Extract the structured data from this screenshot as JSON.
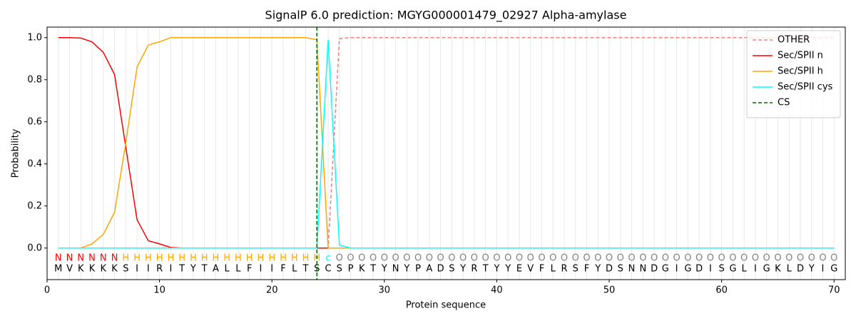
{
  "chart_data": {
    "type": "line",
    "title": "SignalP 6.0 prediction: MGYG000001479_02927 Alpha-amylase",
    "x_label": "Protein sequence",
    "y_label": "Probability",
    "x": [
      1,
      2,
      3,
      4,
      5,
      6,
      7,
      8,
      9,
      10,
      11,
      12,
      13,
      14,
      15,
      16,
      17,
      18,
      19,
      20,
      21,
      22,
      23,
      24,
      25,
      26,
      27,
      28,
      29,
      30,
      31,
      32,
      33,
      34,
      35,
      36,
      37,
      38,
      39,
      40,
      41,
      42,
      43,
      44,
      45,
      46,
      47,
      48,
      49,
      50,
      51,
      52,
      53,
      54,
      55,
      56,
      57,
      58,
      59,
      60,
      61,
      62,
      63,
      64,
      65,
      66,
      67,
      68,
      69,
      70
    ],
    "sequence": [
      "M",
      "V",
      "K",
      "K",
      "K",
      "K",
      "S",
      "I",
      "I",
      "R",
      "I",
      "T",
      "Y",
      "T",
      "A",
      "L",
      "L",
      "F",
      "I",
      "I",
      "F",
      "L",
      "T",
      "S",
      "C",
      "S",
      "P",
      "K",
      "T",
      "Y",
      "N",
      "Y",
      "P",
      "A",
      "D",
      "S",
      "Y",
      "R",
      "T",
      "Y",
      "Y",
      "E",
      "V",
      "F",
      "L",
      "R",
      "S",
      "F",
      "Y",
      "D",
      "S",
      "N",
      "N",
      "D",
      "G",
      "I",
      "G",
      "D",
      "I",
      "S",
      "G",
      "L",
      "I",
      "G",
      "K",
      "L",
      "D",
      "Y",
      "I",
      "G"
    ],
    "regions": [
      "N",
      "N",
      "N",
      "N",
      "N",
      "N",
      "H",
      "H",
      "H",
      "H",
      "H",
      "H",
      "H",
      "H",
      "H",
      "H",
      "H",
      "H",
      "H",
      "H",
      "H",
      "H",
      "H",
      "H",
      "c",
      "O",
      "O",
      "O",
      "O",
      "O",
      "O",
      "O",
      "O",
      "O",
      "O",
      "O",
      "O",
      "O",
      "O",
      "O",
      "O",
      "O",
      "O",
      "O",
      "O",
      "O",
      "O",
      "O",
      "O",
      "O",
      "O",
      "O",
      "O",
      "O",
      "O",
      "O",
      "O",
      "O",
      "O",
      "O",
      "O",
      "O",
      "O",
      "O",
      "O",
      "O",
      "O",
      "O",
      "O",
      "O"
    ],
    "region_colors": {
      "N": "#ff0000",
      "H": "#ffa500",
      "c": "#00ffff",
      "O": "#808080"
    },
    "series": [
      {
        "name": "OTHER",
        "color": "#f08080",
        "dashed": true,
        "values": [
          0,
          0,
          0,
          0,
          0,
          0,
          0,
          0,
          0,
          0,
          0,
          0,
          0,
          0,
          0,
          0,
          0,
          0,
          0,
          0,
          0,
          0,
          0,
          0,
          0,
          0.995,
          1,
          1,
          1,
          1,
          1,
          1,
          1,
          1,
          1,
          1,
          1,
          1,
          1,
          1,
          1,
          1,
          1,
          1,
          1,
          1,
          1,
          1,
          1,
          1,
          1,
          1,
          1,
          1,
          1,
          1,
          1,
          1,
          1,
          1,
          1,
          1,
          1,
          1,
          1,
          1,
          1,
          1,
          1,
          1
        ]
      },
      {
        "name": "Sec/SPII n",
        "color": "#ff0000",
        "dashed": false,
        "values": [
          1,
          1,
          0.998,
          0.98,
          0.93,
          0.825,
          0.48,
          0.135,
          0.035,
          0.02,
          0.003,
          0,
          0,
          0,
          0,
          0,
          0,
          0,
          0,
          0,
          0,
          0,
          0,
          0,
          0,
          0,
          0,
          0,
          0,
          0,
          0,
          0,
          0,
          0,
          0,
          0,
          0,
          0,
          0,
          0,
          0,
          0,
          0,
          0,
          0,
          0,
          0,
          0,
          0,
          0,
          0,
          0,
          0,
          0,
          0,
          0,
          0,
          0,
          0,
          0,
          0,
          0,
          0,
          0,
          0,
          0,
          0,
          0,
          0,
          0
        ]
      },
      {
        "name": "Sec/SPII h",
        "color": "#ffa500",
        "dashed": false,
        "values": [
          0,
          0,
          0,
          0.02,
          0.065,
          0.17,
          0.5,
          0.86,
          0.965,
          0.98,
          1,
          1,
          1,
          1,
          1,
          1,
          1,
          1,
          1,
          1,
          1,
          1,
          1,
          0.99,
          0,
          0,
          0,
          0,
          0,
          0,
          0,
          0,
          0,
          0,
          0,
          0,
          0,
          0,
          0,
          0,
          0,
          0,
          0,
          0,
          0,
          0,
          0,
          0,
          0,
          0,
          0,
          0,
          0,
          0,
          0,
          0,
          0,
          0,
          0,
          0,
          0,
          0,
          0,
          0,
          0,
          0,
          0,
          0,
          0,
          0
        ]
      },
      {
        "name": "Sec/SPII cys",
        "color": "#00ffff",
        "dashed": false,
        "values": [
          0,
          0,
          0,
          0,
          0,
          0,
          0,
          0,
          0,
          0,
          0,
          0,
          0,
          0,
          0,
          0,
          0,
          0,
          0,
          0,
          0,
          0,
          0,
          0,
          0.99,
          0.015,
          0,
          0,
          0,
          0,
          0,
          0,
          0,
          0,
          0,
          0,
          0,
          0,
          0,
          0,
          0,
          0,
          0,
          0,
          0,
          0,
          0,
          0,
          0,
          0,
          0,
          0,
          0,
          0,
          0,
          0,
          0,
          0,
          0,
          0,
          0,
          0,
          0,
          0,
          0,
          0,
          0,
          0,
          0,
          0
        ]
      }
    ],
    "markers": [
      {
        "name": "CS",
        "x": 24,
        "color": "#006400"
      }
    ],
    "xlim": [
      0,
      71
    ],
    "ylim": [
      -0.15,
      1.05
    ],
    "xticks": [
      0,
      10,
      20,
      30,
      40,
      50,
      60,
      70
    ],
    "yticks": [
      {
        "value": 0,
        "label": "0.0"
      },
      {
        "value": 0.2,
        "label": "0.2"
      },
      {
        "value": 0.4,
        "label": "0.4"
      },
      {
        "value": 0.6,
        "label": "0.6"
      },
      {
        "value": 0.8,
        "label": "0.8"
      },
      {
        "value": 1,
        "label": "1.0"
      }
    ],
    "grid": true,
    "legend": "upper right"
  }
}
